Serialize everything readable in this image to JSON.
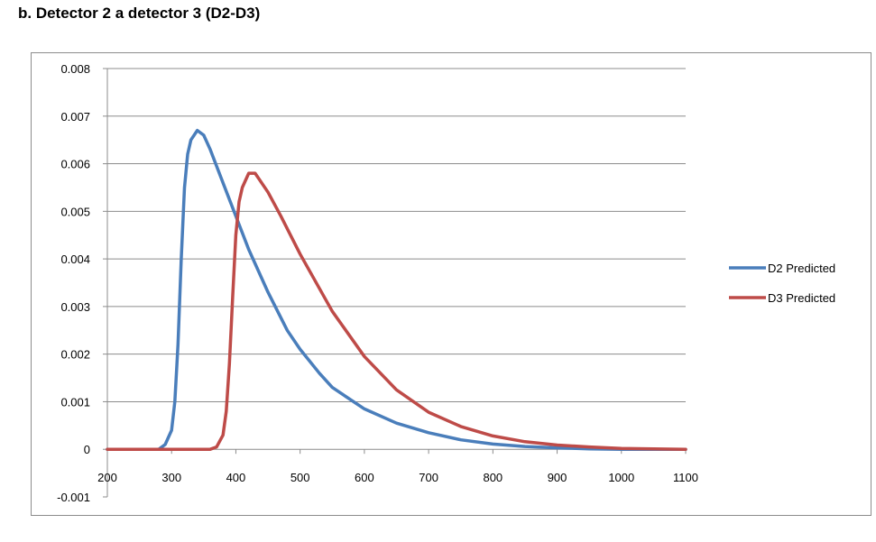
{
  "title": "b. Detector 2 a detector 3 (D2-D3)",
  "colors": {
    "d2": "#4a7ebb",
    "d3": "#be4b48",
    "grid": "#8c8c8c",
    "axis": "#8c8c8c"
  },
  "chart_data": {
    "type": "line",
    "title": "b. Detector 2 a detector 3 (D2-D3)",
    "xlabel": "",
    "ylabel": "",
    "xlim": [
      200,
      1100
    ],
    "ylim": [
      -0.001,
      0.008
    ],
    "x_ticks": [
      "200",
      "300",
      "400",
      "500",
      "600",
      "700",
      "800",
      "900",
      "1000",
      "1100"
    ],
    "y_ticks": [
      "-0.001",
      "0",
      "0.001",
      "0.002",
      "0.003",
      "0.004",
      "0.005",
      "0.006",
      "0.007",
      "0.008"
    ],
    "grid": true,
    "legend_position": "right",
    "series": [
      {
        "name": "D2 Predicted",
        "color": "#4a7ebb",
        "points": [
          [
            200,
            0
          ],
          [
            280,
            0
          ],
          [
            290,
            0.0001
          ],
          [
            300,
            0.0004
          ],
          [
            305,
            0.001
          ],
          [
            310,
            0.0022
          ],
          [
            315,
            0.004
          ],
          [
            320,
            0.0055
          ],
          [
            325,
            0.0062
          ],
          [
            330,
            0.0065
          ],
          [
            340,
            0.0067
          ],
          [
            350,
            0.0066
          ],
          [
            360,
            0.0063
          ],
          [
            380,
            0.0056
          ],
          [
            400,
            0.0049
          ],
          [
            420,
            0.0042
          ],
          [
            450,
            0.0033
          ],
          [
            480,
            0.0025
          ],
          [
            500,
            0.0021
          ],
          [
            530,
            0.0016
          ],
          [
            550,
            0.0013
          ],
          [
            600,
            0.00085
          ],
          [
            650,
            0.00055
          ],
          [
            700,
            0.00035
          ],
          [
            750,
            0.0002
          ],
          [
            800,
            0.00011
          ],
          [
            850,
            6e-05
          ],
          [
            900,
            3e-05
          ],
          [
            950,
            1e-05
          ],
          [
            1000,
            0
          ],
          [
            1100,
            0
          ]
        ]
      },
      {
        "name": "D3 Predicted",
        "color": "#be4b48",
        "points": [
          [
            200,
            0
          ],
          [
            360,
            0
          ],
          [
            370,
            5e-05
          ],
          [
            380,
            0.0003
          ],
          [
            385,
            0.0008
          ],
          [
            390,
            0.0018
          ],
          [
            395,
            0.0032
          ],
          [
            400,
            0.0045
          ],
          [
            405,
            0.0052
          ],
          [
            410,
            0.0055
          ],
          [
            420,
            0.0058
          ],
          [
            425,
            0.0058
          ],
          [
            430,
            0.0058
          ],
          [
            450,
            0.0054
          ],
          [
            470,
            0.0049
          ],
          [
            500,
            0.0041
          ],
          [
            550,
            0.0029
          ],
          [
            600,
            0.00195
          ],
          [
            650,
            0.00125
          ],
          [
            700,
            0.00078
          ],
          [
            750,
            0.00048
          ],
          [
            800,
            0.00028
          ],
          [
            850,
            0.00016
          ],
          [
            900,
            9e-05
          ],
          [
            950,
            5e-05
          ],
          [
            1000,
            2e-05
          ],
          [
            1050,
            1e-05
          ],
          [
            1100,
            0
          ]
        ]
      }
    ]
  }
}
